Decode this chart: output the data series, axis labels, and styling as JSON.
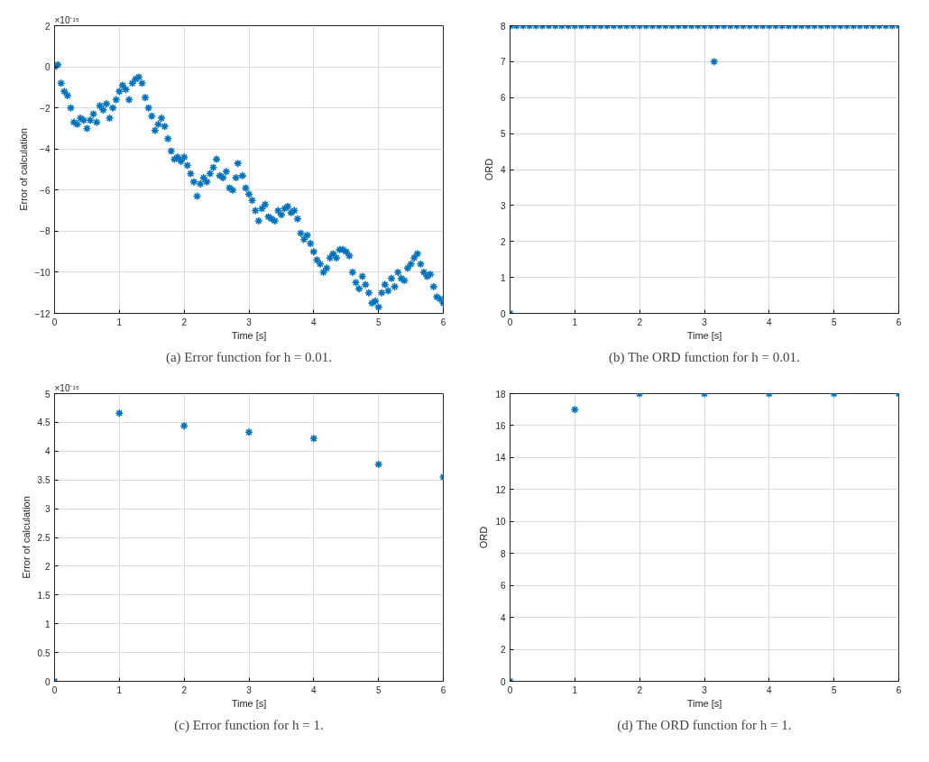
{
  "chart_data": [
    {
      "type": "scatter",
      "marker": "cross",
      "grid": true,
      "xlabel": "Time [s]",
      "ylabel": "Error of calculation",
      "xlim": [
        0,
        6
      ],
      "ylim": [
        -12,
        2
      ],
      "xticks": [
        0,
        1,
        2,
        3,
        4,
        5,
        6
      ],
      "yticks": [
        -12,
        -10,
        -8,
        -6,
        -4,
        -2,
        0,
        2
      ],
      "annotations": [
        "×10⁻¹⁵",
        "(a) Error function for h = 0.01."
      ],
      "series": [
        {
          "color": "#0072bd",
          "x": [
            0,
            0.05,
            0.1,
            0.15,
            0.2,
            0.25,
            0.3,
            0.35,
            0.4,
            0.45,
            0.5,
            0.55,
            0.6,
            0.65,
            0.7,
            0.75,
            0.8,
            0.85,
            0.9,
            0.95,
            1.0,
            1.05,
            1.1,
            1.15,
            1.2,
            1.25,
            1.3,
            1.35,
            1.4,
            1.45,
            1.5,
            1.55,
            1.6,
            1.65,
            1.7,
            1.75,
            1.8,
            1.85,
            1.9,
            1.95,
            2.0,
            2.05,
            2.1,
            2.15,
            2.2,
            2.25,
            2.3,
            2.35,
            2.4,
            2.45,
            2.5,
            2.55,
            2.6,
            2.65,
            2.7,
            2.75,
            2.8,
            2.83,
            2.9,
            2.95,
            3.0,
            3.05,
            3.1,
            3.15,
            3.2,
            3.25,
            3.3,
            3.35,
            3.4,
            3.45,
            3.5,
            3.55,
            3.6,
            3.65,
            3.7,
            3.75,
            3.8,
            3.85,
            3.9,
            3.95,
            4.0,
            4.05,
            4.1,
            4.15,
            4.2,
            4.25,
            4.3,
            4.35,
            4.4,
            4.45,
            4.5,
            4.55,
            4.6,
            4.65,
            4.7,
            4.75,
            4.8,
            4.85,
            4.9,
            4.95,
            5.0,
            5.05,
            5.1,
            5.15,
            5.2,
            5.25,
            5.3,
            5.35,
            5.4,
            5.45,
            5.5,
            5.55,
            5.6,
            5.65,
            5.7,
            5.75,
            5.8,
            5.85,
            5.9,
            5.95,
            6.0
          ],
          "values": [
            0.0,
            0.1,
            -0.8,
            -1.2,
            -1.4,
            -2.0,
            -2.7,
            -2.8,
            -2.5,
            -2.6,
            -3.0,
            -2.6,
            -2.3,
            -2.7,
            -1.9,
            -2.1,
            -1.8,
            -2.5,
            -2.0,
            -1.6,
            -1.2,
            -0.9,
            -1.1,
            -1.6,
            -0.8,
            -0.6,
            -0.5,
            -0.8,
            -1.5,
            -2.0,
            -2.4,
            -3.1,
            -2.8,
            -2.5,
            -2.9,
            -3.5,
            -4.1,
            -4.5,
            -4.4,
            -4.6,
            -4.4,
            -4.8,
            -5.2,
            -5.6,
            -6.3,
            -5.7,
            -5.4,
            -5.6,
            -5.2,
            -4.9,
            -4.5,
            -5.3,
            -5.4,
            -5.1,
            -5.9,
            -6.0,
            -5.4,
            -4.7,
            -5.3,
            -5.9,
            -6.2,
            -6.5,
            -7.0,
            -7.5,
            -6.9,
            -6.7,
            -7.3,
            -7.4,
            -7.5,
            -7.0,
            -7.2,
            -6.9,
            -6.8,
            -7.1,
            -7.0,
            -7.4,
            -8.1,
            -8.4,
            -8.2,
            -8.6,
            -9.0,
            -9.4,
            -9.6,
            -10.0,
            -9.8,
            -9.3,
            -9.1,
            -9.3,
            -8.9,
            -8.9,
            -9.0,
            -9.2,
            -10.0,
            -10.5,
            -10.8,
            -10.2,
            -10.6,
            -11.0,
            -11.5,
            -11.4,
            -11.7,
            -11.0,
            -10.6,
            -10.9,
            -10.3,
            -10.7,
            -10.0,
            -10.3,
            -10.4,
            -9.8,
            -9.6,
            -9.3,
            -9.1,
            -9.6,
            -10.0,
            -10.2,
            -10.1,
            -10.7,
            -11.2,
            -11.3,
            -11.5
          ]
        }
      ]
    },
    {
      "type": "scatter",
      "marker": "cross",
      "grid": true,
      "xlabel": "Time [s]",
      "ylabel": "ORD",
      "xlim": [
        0,
        6
      ],
      "ylim": [
        0,
        8
      ],
      "xticks": [
        0,
        1,
        2,
        3,
        4,
        5,
        6
      ],
      "yticks": [
        0,
        1,
        2,
        3,
        4,
        5,
        6,
        7,
        8
      ],
      "annotations": [
        "(b) The ORD function for h = 0.01."
      ],
      "series": [
        {
          "color": "#0072bd",
          "x": [
            0,
            0.01,
            0.1,
            0.2,
            0.3,
            0.4,
            0.5,
            0.6,
            0.7,
            0.8,
            0.9,
            1.0,
            1.1,
            1.2,
            1.3,
            1.4,
            1.5,
            1.6,
            1.7,
            1.8,
            1.9,
            2.0,
            2.1,
            2.2,
            2.3,
            2.4,
            2.5,
            2.6,
            2.7,
            2.8,
            2.9,
            3.0,
            3.1,
            3.15,
            3.2,
            3.3,
            3.4,
            3.5,
            3.6,
            3.7,
            3.8,
            3.9,
            4.0,
            4.1,
            4.2,
            4.3,
            4.4,
            4.5,
            4.6,
            4.7,
            4.8,
            4.9,
            5.0,
            5.1,
            5.2,
            5.3,
            5.4,
            5.5,
            5.6,
            5.7,
            5.8,
            5.9,
            6.0
          ],
          "values": [
            0,
            8,
            8,
            8,
            8,
            8,
            8,
            8,
            8,
            8,
            8,
            8,
            8,
            8,
            8,
            8,
            8,
            8,
            8,
            8,
            8,
            8,
            8,
            8,
            8,
            8,
            8,
            8,
            8,
            8,
            8,
            8,
            8,
            7,
            8,
            8,
            8,
            8,
            8,
            8,
            8,
            8,
            8,
            8,
            8,
            8,
            8,
            8,
            8,
            8,
            8,
            8,
            8,
            8,
            8,
            8,
            8,
            8,
            8,
            8,
            8,
            8,
            8
          ]
        }
      ]
    },
    {
      "type": "scatter",
      "marker": "cross",
      "grid": true,
      "xlabel": "Time [s]",
      "ylabel": "Error of calculation",
      "xlim": [
        0,
        6
      ],
      "ylim": [
        0,
        5
      ],
      "xticks": [
        0,
        1,
        2,
        3,
        4,
        5,
        6
      ],
      "yticks": [
        0,
        0.5,
        1,
        1.5,
        2,
        2.5,
        3,
        3.5,
        4,
        4.5,
        5
      ],
      "annotations": [
        "×10⁻¹⁵",
        "(c) Error function for h = 1."
      ],
      "series": [
        {
          "color": "#0072bd",
          "x": [
            0,
            1,
            2,
            3,
            4,
            5,
            6
          ],
          "values": [
            0,
            4.66,
            4.44,
            4.33,
            4.22,
            3.77,
            3.55
          ]
        }
      ]
    },
    {
      "type": "scatter",
      "marker": "cross",
      "grid": true,
      "xlabel": "Time [s]",
      "ylabel": "ORD",
      "xlim": [
        0,
        6
      ],
      "ylim": [
        0,
        18
      ],
      "xticks": [
        0,
        1,
        2,
        3,
        4,
        5,
        6
      ],
      "yticks": [
        0,
        2,
        4,
        6,
        8,
        10,
        12,
        14,
        16,
        18
      ],
      "annotations": [
        "(d) The ORD function for h = 1."
      ],
      "series": [
        {
          "color": "#0072bd",
          "x": [
            0,
            1,
            2,
            3,
            4,
            5,
            6
          ],
          "values": [
            0,
            17,
            18,
            18,
            18,
            18,
            18
          ]
        }
      ]
    }
  ]
}
